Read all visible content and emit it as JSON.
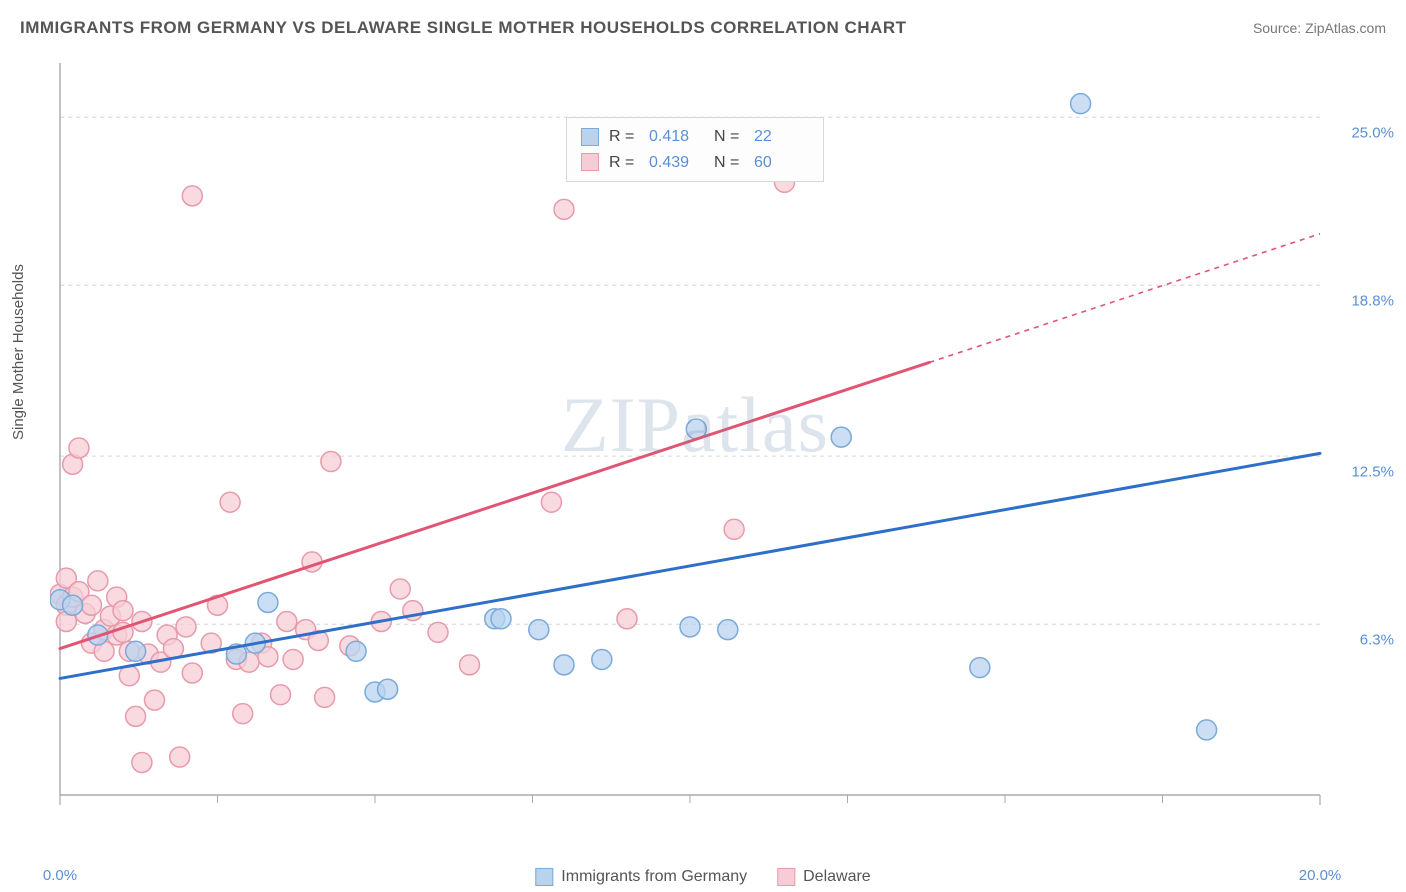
{
  "title": "IMMIGRANTS FROM GERMANY VS DELAWARE SINGLE MOTHER HOUSEHOLDS CORRELATION CHART",
  "source_prefix": "Source: ",
  "source_name": "ZipAtlas.com",
  "watermark": "ZIPatlas",
  "chart": {
    "type": "scatter",
    "ylabel": "Single Mother Households",
    "xlim": [
      0,
      20
    ],
    "ylim": [
      0,
      27
    ],
    "xtick_labels": [
      "0.0%",
      "20.0%"
    ],
    "xtick_values": [
      0,
      20
    ],
    "xtick_minor": [
      2.5,
      5,
      7.5,
      10,
      12.5,
      15,
      17.5
    ],
    "ytick_labels": [
      "6.3%",
      "12.5%",
      "18.8%",
      "25.0%"
    ],
    "ytick_values": [
      6.3,
      12.5,
      18.8,
      25.0
    ],
    "background_color": "#ffffff",
    "grid_color": "#d6d6d6",
    "axis_color": "#999999",
    "tick_color": "#aaaaaa",
    "label_color": "#5a8fd6",
    "ylabel_fontsize": 15,
    "tick_fontsize": 15,
    "marker_radius": 10,
    "marker_stroke_width": 1.5,
    "line_width": 3,
    "series": [
      {
        "name": "Immigrants from Germany",
        "color_fill": "#b9d3ef",
        "color_stroke": "#7aaad9",
        "line_color": "#2e6fc9",
        "R": "0.418",
        "N": "22",
        "regression": {
          "x1": 0,
          "y1": 4.3,
          "x2": 20,
          "y2": 12.6,
          "solid_until_x": 20
        },
        "points": [
          [
            0.0,
            7.2
          ],
          [
            0.2,
            7.0
          ],
          [
            0.6,
            5.9
          ],
          [
            1.2,
            5.3
          ],
          [
            2.8,
            5.2
          ],
          [
            3.1,
            5.6
          ],
          [
            3.3,
            7.1
          ],
          [
            4.7,
            5.3
          ],
          [
            5.0,
            3.8
          ],
          [
            5.2,
            3.9
          ],
          [
            6.9,
            6.5
          ],
          [
            7.0,
            6.5
          ],
          [
            7.6,
            6.1
          ],
          [
            8.0,
            4.8
          ],
          [
            10.1,
            13.5
          ],
          [
            10.0,
            6.2
          ],
          [
            12.4,
            13.2
          ],
          [
            8.6,
            5.0
          ],
          [
            14.6,
            4.7
          ],
          [
            16.2,
            25.5
          ],
          [
            18.2,
            2.4
          ],
          [
            10.6,
            6.1
          ]
        ]
      },
      {
        "name": "Delaware",
        "color_fill": "#f6cdd6",
        "color_stroke": "#e79aac",
        "line_color": "#e15573",
        "R": "0.439",
        "N": "60",
        "regression": {
          "x1": 0,
          "y1": 5.4,
          "x2": 20,
          "y2": 20.7,
          "solid_until_x": 13.8
        },
        "points": [
          [
            0.0,
            7.4
          ],
          [
            0.1,
            7.0
          ],
          [
            0.1,
            8.0
          ],
          [
            0.1,
            6.4
          ],
          [
            0.2,
            7.3
          ],
          [
            0.2,
            12.2
          ],
          [
            0.3,
            12.8
          ],
          [
            0.3,
            7.5
          ],
          [
            0.4,
            6.7
          ],
          [
            0.5,
            5.6
          ],
          [
            0.5,
            7.0
          ],
          [
            0.6,
            7.9
          ],
          [
            0.7,
            6.1
          ],
          [
            0.7,
            5.3
          ],
          [
            0.8,
            6.6
          ],
          [
            0.9,
            7.3
          ],
          [
            0.9,
            5.9
          ],
          [
            1.0,
            6.0
          ],
          [
            1.0,
            6.8
          ],
          [
            1.1,
            4.4
          ],
          [
            1.1,
            5.3
          ],
          [
            1.2,
            2.9
          ],
          [
            1.3,
            1.2
          ],
          [
            1.3,
            6.4
          ],
          [
            1.4,
            5.2
          ],
          [
            1.5,
            3.5
          ],
          [
            1.6,
            4.9
          ],
          [
            1.7,
            5.9
          ],
          [
            1.8,
            5.4
          ],
          [
            1.9,
            1.4
          ],
          [
            2.0,
            6.2
          ],
          [
            2.1,
            4.5
          ],
          [
            2.1,
            22.1
          ],
          [
            2.4,
            5.6
          ],
          [
            2.5,
            7.0
          ],
          [
            2.7,
            10.8
          ],
          [
            2.8,
            5.0
          ],
          [
            2.9,
            3.0
          ],
          [
            3.0,
            4.9
          ],
          [
            3.2,
            5.6
          ],
          [
            3.3,
            5.1
          ],
          [
            3.5,
            3.7
          ],
          [
            3.6,
            6.4
          ],
          [
            3.7,
            5.0
          ],
          [
            3.9,
            6.1
          ],
          [
            4.0,
            8.6
          ],
          [
            4.1,
            5.7
          ],
          [
            4.2,
            3.6
          ],
          [
            4.3,
            12.3
          ],
          [
            4.6,
            5.5
          ],
          [
            5.1,
            6.4
          ],
          [
            5.4,
            7.6
          ],
          [
            5.6,
            6.8
          ],
          [
            6.0,
            6.0
          ],
          [
            6.5,
            4.8
          ],
          [
            7.8,
            10.8
          ],
          [
            8.0,
            21.6
          ],
          [
            9.0,
            6.5
          ],
          [
            10.7,
            9.8
          ],
          [
            11.5,
            22.6
          ]
        ]
      }
    ]
  },
  "legend_top": {
    "labels": {
      "R": "R  =",
      "N": "N  ="
    }
  },
  "legend_bottom": {}
}
